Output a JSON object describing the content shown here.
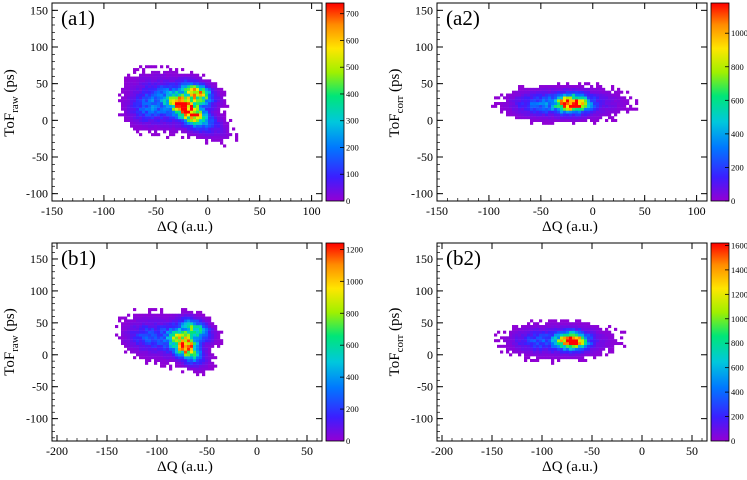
{
  "chart_data": [
    {
      "type": "heatmap",
      "panel_label": "(a1)",
      "ylabel_main": "ToF",
      "ylabel_sub": "raw",
      "ylabel_unit": " (ps)",
      "xlabel": "ΔQ (a.u.)",
      "xlim": [
        -150,
        110
      ],
      "ylim": [
        -110,
        160
      ],
      "xticks": [
        -150,
        -100,
        -50,
        0,
        50,
        100
      ],
      "yticks": [
        -100,
        -50,
        0,
        50,
        100,
        150
      ],
      "colorbar": {
        "min": 0,
        "max": 740,
        "ticks": [
          0,
          100,
          200,
          300,
          400,
          500,
          600,
          700
        ]
      },
      "clusters": [
        {
          "cx": -20,
          "cy": 15,
          "sx": 10,
          "sy": 13,
          "rho": -0.6,
          "peak": 740
        },
        {
          "cx": -10,
          "cy": 37,
          "sx": 9,
          "sy": 9,
          "rho": -0.4,
          "peak": 600
        },
        {
          "cx": -40,
          "cy": 25,
          "sx": 16,
          "sy": 17,
          "rho": -0.3,
          "peak": 190
        },
        {
          "cx": -60,
          "cy": 15,
          "sx": 10,
          "sy": 12,
          "rho": 0.0,
          "peak": 110
        },
        {
          "cx": -5,
          "cy": 5,
          "sx": 12,
          "sy": 14,
          "rho": -0.7,
          "peak": 120
        }
      ]
    },
    {
      "type": "heatmap",
      "panel_label": "(a2)",
      "ylabel_main": "ToF",
      "ylabel_sub": "corr",
      "ylabel_unit": " (ps)",
      "xlabel": "ΔQ (a.u.)",
      "xlim": [
        -150,
        110
      ],
      "ylim": [
        -110,
        160
      ],
      "xticks": [
        -150,
        -100,
        -50,
        0,
        50,
        100
      ],
      "yticks": [
        -100,
        -50,
        0,
        50,
        100,
        150
      ],
      "colorbar": {
        "min": 0,
        "max": 1180,
        "ticks": [
          0,
          200,
          400,
          600,
          800,
          1000
        ]
      },
      "clusters": [
        {
          "cx": -20,
          "cy": 23,
          "sx": 9,
          "sy": 7,
          "rho": 0.0,
          "peak": 1180
        },
        {
          "cx": -25,
          "cy": 23,
          "sx": 24,
          "sy": 10,
          "rho": 0.0,
          "peak": 280
        },
        {
          "cx": -55,
          "cy": 22,
          "sx": 13,
          "sy": 9,
          "rho": 0.0,
          "peak": 140
        }
      ]
    },
    {
      "type": "heatmap",
      "panel_label": "(b1)",
      "ylabel_main": "ToF",
      "ylabel_sub": "raw",
      "ylabel_unit": " (ps)",
      "xlabel": "ΔQ (a.u.)",
      "xlim": [
        -205,
        65
      ],
      "ylim": [
        -135,
        175
      ],
      "xticks": [
        -200,
        -150,
        -100,
        -50,
        0,
        50
      ],
      "yticks": [
        -100,
        -50,
        0,
        50,
        100,
        150
      ],
      "colorbar": {
        "min": 0,
        "max": 1240,
        "ticks": [
          0,
          200,
          400,
          600,
          800,
          1000,
          1200
        ]
      },
      "clusters": [
        {
          "cx": -72,
          "cy": 15,
          "sx": 9,
          "sy": 14,
          "rho": -0.5,
          "peak": 1240
        },
        {
          "cx": -62,
          "cy": 40,
          "sx": 9,
          "sy": 10,
          "rho": -0.4,
          "peak": 700
        },
        {
          "cx": -95,
          "cy": 25,
          "sx": 16,
          "sy": 17,
          "rho": -0.3,
          "peak": 200
        },
        {
          "cx": -115,
          "cy": 28,
          "sx": 10,
          "sy": 12,
          "rho": 0.0,
          "peak": 120
        }
      ]
    },
    {
      "type": "heatmap",
      "panel_label": "(b2)",
      "ylabel_main": "ToF",
      "ylabel_sub": "corr",
      "ylabel_unit": " (ps)",
      "xlabel": "ΔQ (a.u.)",
      "xlim": [
        -205,
        65
      ],
      "ylim": [
        -135,
        175
      ],
      "xticks": [
        -200,
        -150,
        -100,
        -50,
        0,
        50
      ],
      "yticks": [
        -100,
        -50,
        0,
        50,
        100,
        150
      ],
      "colorbar": {
        "min": 0,
        "max": 1620,
        "ticks": [
          0,
          200,
          400,
          600,
          800,
          1000,
          1200,
          1400,
          1600
        ]
      },
      "clusters": [
        {
          "cx": -70,
          "cy": 22,
          "sx": 9,
          "sy": 8,
          "rho": 0.0,
          "peak": 1620
        },
        {
          "cx": -80,
          "cy": 22,
          "sx": 23,
          "sy": 12,
          "rho": 0.0,
          "peak": 300
        },
        {
          "cx": -110,
          "cy": 22,
          "sx": 12,
          "sy": 10,
          "rho": 0.0,
          "peak": 150
        }
      ]
    }
  ]
}
